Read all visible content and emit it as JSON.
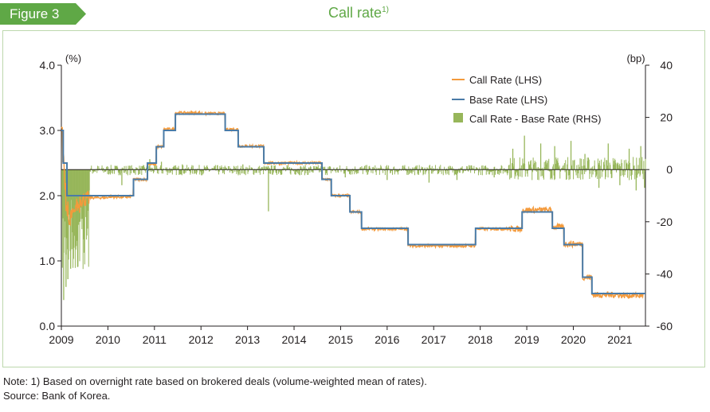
{
  "header": {
    "figure_label": "Figure 3",
    "title": "Call rate",
    "title_footnote": "1)"
  },
  "notes": {
    "note": "Note: 1) Based on overnight rate based on brokered deals (volume-weighted mean of rates).",
    "source": "Source: Bank of Korea."
  },
  "colors": {
    "call_rate": "#f39a3c",
    "base_rate": "#4a7ba7",
    "spread": "#97b65a",
    "accent": "#5fa846",
    "frame": "#bdd8ad"
  },
  "chart_data": {
    "type": "line",
    "title": "Call rate",
    "x_ticks": [
      "2009",
      "2010",
      "2011",
      "2012",
      "2013",
      "2014",
      "2015",
      "2016",
      "2017",
      "2018",
      "2019",
      "2020",
      "2021"
    ],
    "xlim": [
      2009.0,
      2021.55
    ],
    "left_axis": {
      "unit": "(%)",
      "ylim": [
        0,
        4
      ],
      "ticks": [
        "0.0",
        "1.0",
        "2.0",
        "3.0",
        "4.0"
      ]
    },
    "right_axis": {
      "unit": "(bp)",
      "ylim": [
        -60,
        40
      ],
      "ticks": [
        "-60",
        "-40",
        "-20",
        "0",
        "20",
        "40"
      ]
    },
    "legend_position": "top-right",
    "legend": [
      "Call Rate (LHS)",
      "Base Rate (LHS)",
      "Call Rate - Base Rate (RHS)"
    ],
    "series": [
      {
        "name": "Base Rate (LHS)",
        "kind": "step",
        "axis": "left",
        "points": [
          [
            2009.0,
            3.0
          ],
          [
            2009.04,
            2.5
          ],
          [
            2009.12,
            2.0
          ],
          [
            2010.55,
            2.25
          ],
          [
            2010.85,
            2.5
          ],
          [
            2011.04,
            2.75
          ],
          [
            2011.2,
            3.0
          ],
          [
            2011.45,
            3.25
          ],
          [
            2012.52,
            3.0
          ],
          [
            2012.8,
            2.75
          ],
          [
            2013.35,
            2.5
          ],
          [
            2014.6,
            2.25
          ],
          [
            2014.8,
            2.0
          ],
          [
            2015.2,
            1.75
          ],
          [
            2015.45,
            1.5
          ],
          [
            2016.45,
            1.25
          ],
          [
            2017.9,
            1.5
          ],
          [
            2018.9,
            1.75
          ],
          [
            2019.55,
            1.5
          ],
          [
            2019.8,
            1.25
          ],
          [
            2020.2,
            0.75
          ],
          [
            2020.4,
            0.5
          ],
          [
            2021.55,
            0.5
          ]
        ]
      },
      {
        "name": "Call Rate (LHS)",
        "kind": "line",
        "axis": "left",
        "points": [
          [
            2009.0,
            3.0
          ],
          [
            2009.03,
            2.55
          ],
          [
            2009.07,
            2.2
          ],
          [
            2009.1,
            1.8
          ],
          [
            2009.15,
            1.55
          ],
          [
            2009.2,
            1.7
          ],
          [
            2009.3,
            1.85
          ],
          [
            2009.4,
            1.95
          ],
          [
            2009.6,
            1.97
          ],
          [
            2010.0,
            1.98
          ],
          [
            2010.5,
            2.0
          ],
          [
            2010.55,
            2.25
          ],
          [
            2010.85,
            2.48
          ],
          [
            2011.04,
            2.75
          ],
          [
            2011.2,
            3.02
          ],
          [
            2011.45,
            3.27
          ],
          [
            2012.0,
            3.26
          ],
          [
            2012.52,
            3.02
          ],
          [
            2012.8,
            2.76
          ],
          [
            2013.35,
            2.5
          ],
          [
            2014.6,
            2.25
          ],
          [
            2014.8,
            2.0
          ],
          [
            2015.2,
            1.75
          ],
          [
            2015.45,
            1.49
          ],
          [
            2016.45,
            1.23
          ],
          [
            2017.9,
            1.49
          ],
          [
            2018.9,
            1.78
          ],
          [
            2019.55,
            1.52
          ],
          [
            2019.8,
            1.26
          ],
          [
            2020.2,
            0.75
          ],
          [
            2020.4,
            0.48
          ],
          [
            2021.0,
            0.47
          ],
          [
            2021.5,
            0.5
          ]
        ]
      },
      {
        "name": "Call Rate - Base Rate (RHS)",
        "kind": "bar",
        "axis": "right",
        "spikes": [
          [
            2009.05,
            -50
          ],
          [
            2009.1,
            -45
          ],
          [
            2009.14,
            -42
          ],
          [
            2009.2,
            -38
          ],
          [
            2009.27,
            -30
          ],
          [
            2009.35,
            -22
          ],
          [
            2009.45,
            -15
          ],
          [
            2009.6,
            -8
          ],
          [
            2010.3,
            -6
          ],
          [
            2010.9,
            4
          ],
          [
            2011.15,
            3
          ],
          [
            2011.6,
            2
          ],
          [
            2012.9,
            2
          ],
          [
            2013.45,
            -16
          ],
          [
            2014.3,
            -2
          ],
          [
            2015.1,
            -3
          ],
          [
            2016.0,
            -4
          ],
          [
            2016.9,
            -5
          ],
          [
            2017.5,
            -4
          ],
          [
            2018.3,
            -3
          ],
          [
            2018.7,
            8
          ],
          [
            2018.95,
            13
          ],
          [
            2019.3,
            10
          ],
          [
            2019.6,
            9
          ],
          [
            2019.95,
            11
          ],
          [
            2020.25,
            6
          ],
          [
            2020.55,
            -7
          ],
          [
            2020.75,
            10
          ],
          [
            2021.0,
            -6
          ],
          [
            2021.2,
            8
          ],
          [
            2021.35,
            -8
          ],
          [
            2021.45,
            9
          ],
          [
            2021.53,
            -7
          ]
        ]
      }
    ]
  }
}
